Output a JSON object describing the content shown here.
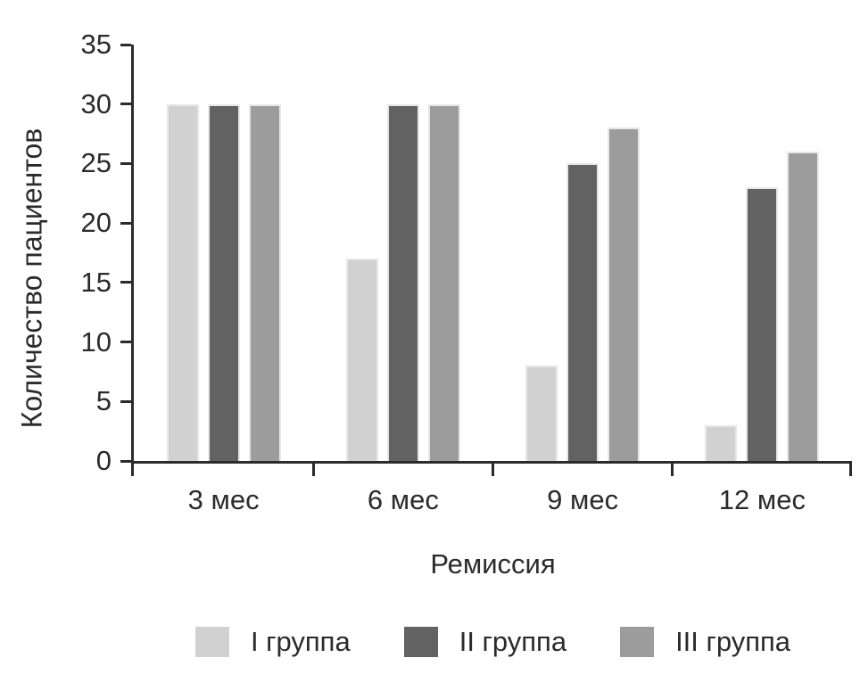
{
  "chart_data": {
    "type": "bar",
    "title": "",
    "ylabel": "Количество пациентов",
    "xlabel": "Ремиссия",
    "categories": [
      "3 мес",
      "6 мес",
      "9 мес",
      "12 мес"
    ],
    "series": [
      {
        "name": "I группа",
        "color": "#d1d1d1",
        "values": [
          30,
          17,
          8,
          3
        ]
      },
      {
        "name": "II группа",
        "color": "#626262",
        "values": [
          30,
          30,
          25,
          23
        ]
      },
      {
        "name": "III группа",
        "color": "#9c9c9c",
        "values": [
          30,
          30,
          28,
          26
        ]
      }
    ],
    "ylim": [
      0,
      35
    ],
    "ytick_step": 5,
    "ytick_labels": [
      "0",
      "5",
      "10",
      "15",
      "20",
      "25",
      "30",
      "35"
    ],
    "grid": false,
    "legend_position": "bottom",
    "axis_color": "#2b2b2b",
    "bar_edge_color": "#e7e7e7"
  }
}
